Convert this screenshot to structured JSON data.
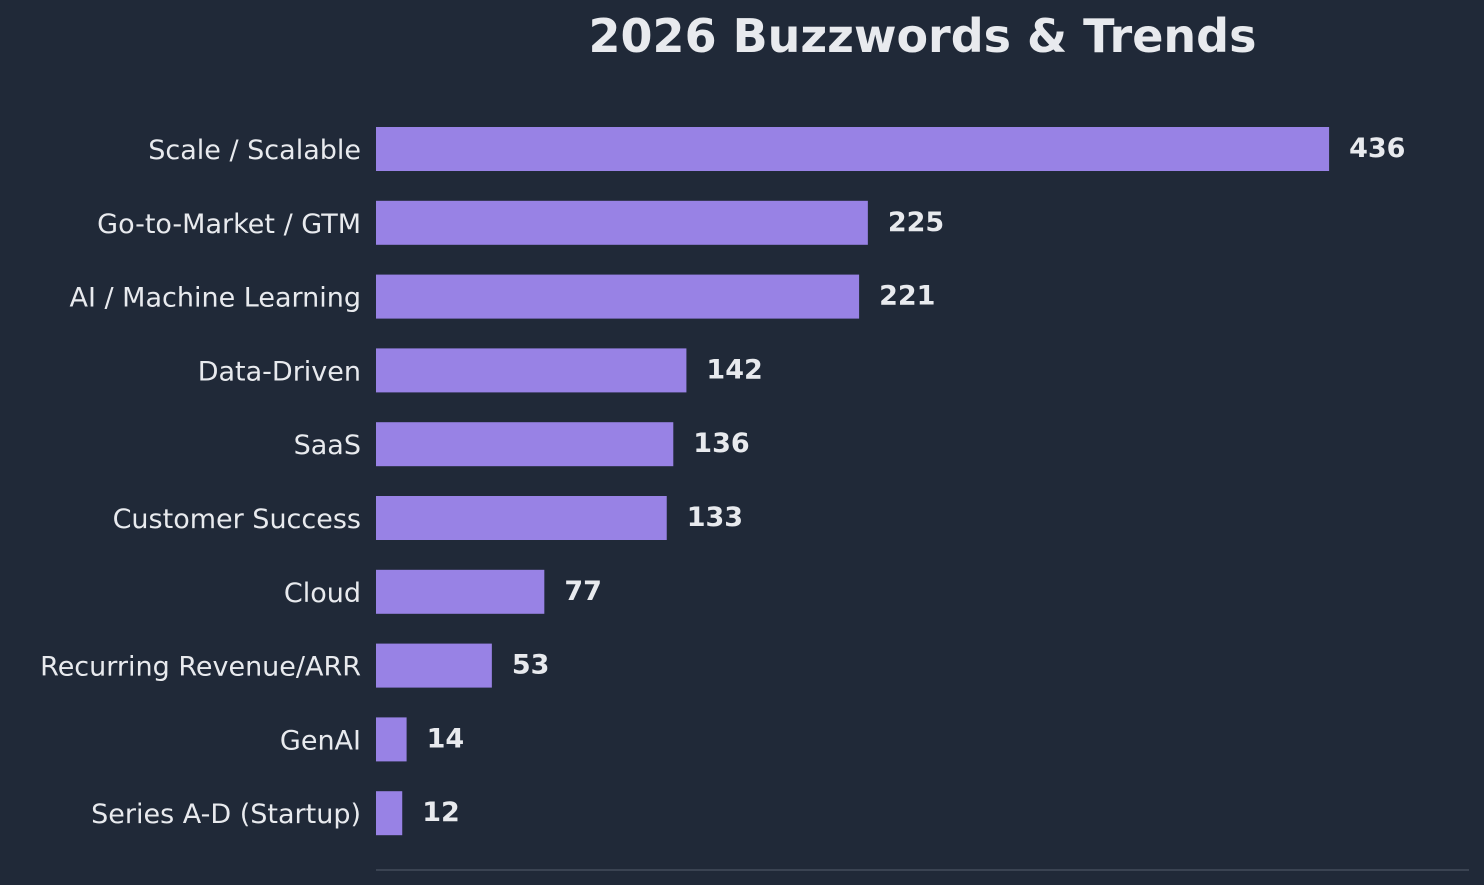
{
  "chart_data": {
    "type": "bar",
    "orientation": "horizontal",
    "title": "2026 Buzzwords & Trends",
    "xlabel": "",
    "ylabel": "",
    "categories": [
      "Scale / Scalable",
      "Go-to-Market / GTM",
      "AI / Machine Learning",
      "Data-Driven",
      "SaaS",
      "Customer Success",
      "Cloud",
      "Recurring Revenue/ARR",
      "GenAI",
      "Series A-D (Startup)"
    ],
    "values": [
      436,
      225,
      221,
      142,
      136,
      133,
      77,
      53,
      14,
      12
    ],
    "xlim": [
      0,
      500
    ],
    "grid": false,
    "legend": "none",
    "colors": {
      "background": "#202938",
      "bar": "#9882e5",
      "text": "#e8eaee",
      "axis": "#3a4352"
    }
  }
}
